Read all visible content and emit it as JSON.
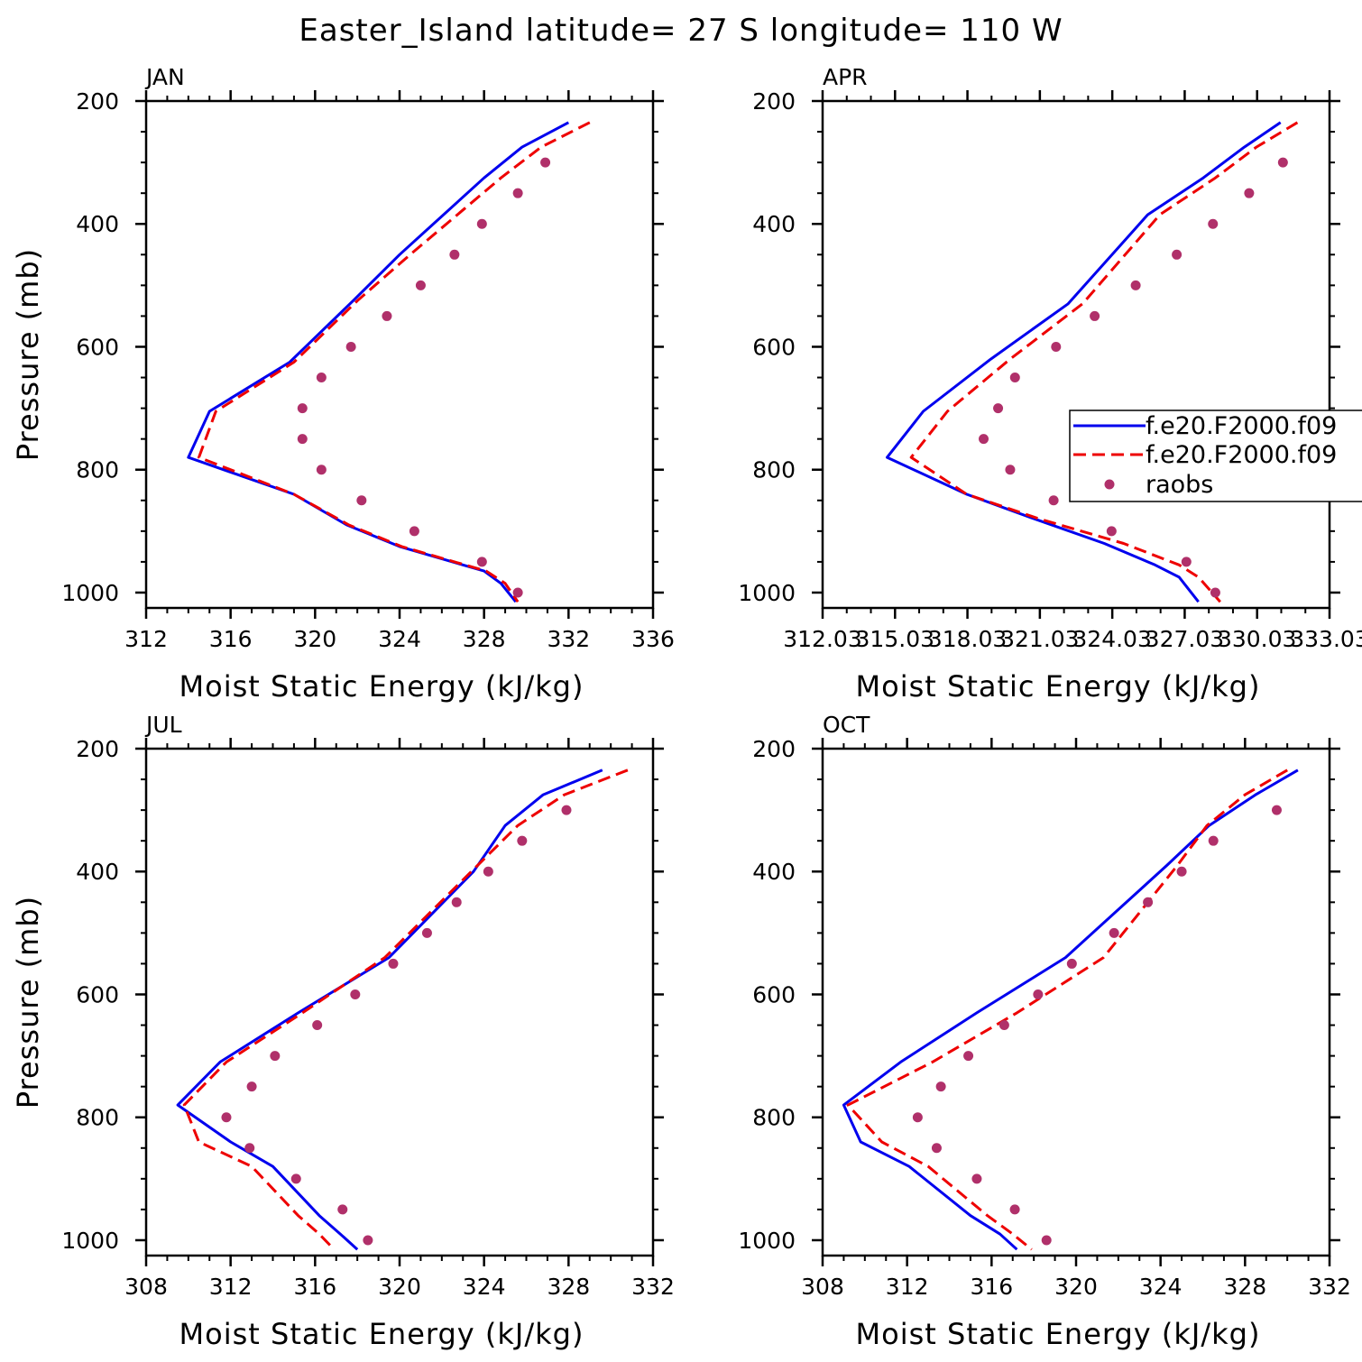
{
  "title": "Easter_Island   latitude= 27 S longitude= 110 W",
  "colors": {
    "series1": "#0000ee",
    "series2": "#ee0000",
    "raobs": "#b0306a"
  },
  "legend": {
    "placement": "right edge of APR panel",
    "entries": [
      {
        "label": "f.e20.F2000.f09",
        "style": "solid-line"
      },
      {
        "label": "f.e20.F2000.f09",
        "style": "dashed-line"
      },
      {
        "label": "raobs",
        "style": "dot"
      }
    ]
  },
  "chart_data": [
    {
      "type": "line",
      "panel": "JAN",
      "xlabel": "Moist Static Energy (kJ/kg)",
      "ylabel": "Pressure (mb)",
      "xlim": [
        312,
        336
      ],
      "xticks": [
        "312",
        "316",
        "320",
        "324",
        "328",
        "332",
        "336"
      ],
      "ylim": [
        200,
        1025
      ],
      "yticks": [
        "200",
        "400",
        "600",
        "800",
        "1000"
      ],
      "series": [
        {
          "name": "f.e20.F2000.f09 (solid)",
          "x": [
            332.0,
            329.8,
            328.0,
            324.0,
            321.8,
            318.8,
            315.0,
            314.0,
            319.0,
            321.5,
            324.0,
            328.0,
            328.8,
            329.5
          ],
          "y": [
            235,
            275,
            325,
            450,
            525,
            625,
            705,
            780,
            840,
            890,
            925,
            965,
            985,
            1015
          ]
        },
        {
          "name": "f.e20.F2000.f09 (dashed)",
          "x": [
            333.0,
            330.7,
            328.8,
            324.5,
            322.0,
            319.0,
            315.3,
            314.5,
            319.0,
            321.6,
            324.1,
            328.1,
            329.0,
            329.6
          ],
          "y": [
            235,
            275,
            325,
            450,
            525,
            625,
            705,
            780,
            840,
            890,
            925,
            965,
            985,
            1015
          ]
        },
        {
          "name": "raobs",
          "x": [
            330.9,
            329.6,
            327.9,
            326.6,
            325.0,
            323.4,
            321.7,
            320.3,
            319.4,
            319.4,
            320.3,
            322.2,
            324.7,
            327.9,
            329.6
          ],
          "y": [
            300,
            350,
            400,
            450,
            500,
            550,
            600,
            650,
            700,
            750,
            800,
            850,
            900,
            950,
            1000
          ]
        }
      ]
    },
    {
      "type": "line",
      "panel": "APR",
      "xlabel": "Moist Static Energy (kJ/kg)",
      "ylabel": "",
      "xlim": [
        312.03,
        333.03
      ],
      "xticks": [
        "312.03",
        "315.03",
        "318.03",
        "321.03",
        "324.03",
        "327.03",
        "330.03",
        "333.03"
      ],
      "ylim": [
        200,
        1025
      ],
      "yticks": [
        "200",
        "400",
        "600",
        "800",
        "1000"
      ],
      "series": [
        {
          "name": "f.e20.F2000.f09 (solid)",
          "x": [
            331.0,
            329.5,
            327.8,
            325.5,
            322.2,
            319.0,
            316.2,
            314.7,
            318.0,
            320.8,
            323.7,
            325.8,
            326.8,
            327.6
          ],
          "y": [
            235,
            275,
            325,
            385,
            530,
            620,
            705,
            780,
            840,
            880,
            920,
            955,
            975,
            1015
          ]
        },
        {
          "name": "f.e20.F2000.f09 (dashed)",
          "x": [
            331.7,
            330.0,
            328.3,
            326.0,
            322.8,
            319.8,
            317.2,
            315.7,
            318.0,
            321.0,
            324.5,
            326.8,
            327.6,
            328.5
          ],
          "y": [
            235,
            275,
            325,
            385,
            530,
            620,
            705,
            780,
            840,
            880,
            920,
            955,
            975,
            1015
          ]
        },
        {
          "name": "raobs",
          "x": [
            331.1,
            329.7,
            328.2,
            326.7,
            325.0,
            323.3,
            321.7,
            320.0,
            319.3,
            318.7,
            319.8,
            321.6,
            324.0,
            327.1,
            328.3
          ],
          "y": [
            300,
            350,
            400,
            450,
            500,
            550,
            600,
            650,
            700,
            750,
            800,
            850,
            900,
            950,
            1000
          ]
        }
      ]
    },
    {
      "type": "line",
      "panel": "JUL",
      "xlabel": "Moist Static Energy (kJ/kg)",
      "ylabel": "Pressure (mb)",
      "xlim": [
        308,
        332
      ],
      "xticks": [
        "308",
        "312",
        "316",
        "320",
        "324",
        "328",
        "332"
      ],
      "ylim": [
        200,
        1025
      ],
      "yticks": [
        "200",
        "400",
        "600",
        "800",
        "1000"
      ],
      "series": [
        {
          "name": "f.e20.F2000.f09 (solid)",
          "x": [
            329.6,
            326.8,
            325.0,
            323.5,
            319.5,
            315.2,
            311.5,
            309.5,
            312.0,
            314.0,
            316.2,
            317.2,
            318.0
          ],
          "y": [
            235,
            275,
            325,
            400,
            540,
            630,
            710,
            780,
            840,
            880,
            960,
            990,
            1015
          ]
        },
        {
          "name": "f.e20.F2000.f09 (dashed)",
          "x": [
            330.8,
            327.8,
            325.6,
            323.4,
            319.3,
            315.4,
            311.8,
            309.8,
            310.5,
            313.0,
            315.2,
            316.2,
            316.9
          ],
          "y": [
            235,
            275,
            325,
            400,
            540,
            630,
            710,
            780,
            840,
            880,
            960,
            990,
            1015
          ]
        },
        {
          "name": "raobs",
          "x": [
            327.9,
            325.8,
            324.2,
            322.7,
            321.3,
            319.7,
            317.9,
            316.1,
            314.1,
            313.0,
            311.8,
            312.9,
            315.1,
            317.3,
            318.5
          ],
          "y": [
            300,
            350,
            400,
            450,
            500,
            550,
            600,
            650,
            700,
            750,
            800,
            850,
            900,
            950,
            1000
          ]
        }
      ]
    },
    {
      "type": "line",
      "panel": "OCT",
      "xlabel": "Moist Static Energy (kJ/kg)",
      "ylabel": "",
      "xlim": [
        308,
        332
      ],
      "xticks": [
        "308",
        "312",
        "316",
        "320",
        "324",
        "328",
        "332"
      ],
      "ylim": [
        200,
        1025
      ],
      "yticks": [
        "200",
        "400",
        "600",
        "800",
        "1000"
      ],
      "series": [
        {
          "name": "f.e20.F2000.f09 (solid)",
          "x": [
            330.5,
            328.5,
            326.3,
            324.3,
            319.5,
            315.3,
            311.7,
            309.0,
            309.8,
            312.1,
            315.0,
            316.4,
            317.2
          ],
          "y": [
            235,
            275,
            325,
            390,
            540,
            630,
            710,
            780,
            840,
            880,
            960,
            990,
            1015
          ]
        },
        {
          "name": "f.e20.F2000.f09 (dashed)",
          "x": [
            330.0,
            328.0,
            326.2,
            324.8,
            321.3,
            317.2,
            313.2,
            309.2,
            310.8,
            313.0,
            315.8,
            317.0,
            317.9
          ],
          "y": [
            235,
            275,
            325,
            390,
            540,
            630,
            710,
            780,
            840,
            880,
            960,
            990,
            1015
          ]
        },
        {
          "name": "raobs",
          "x": [
            329.5,
            326.5,
            325.0,
            323.4,
            321.8,
            319.8,
            318.2,
            316.6,
            314.9,
            313.6,
            312.5,
            313.4,
            315.3,
            317.1,
            318.6
          ],
          "y": [
            300,
            350,
            400,
            450,
            500,
            550,
            600,
            650,
            700,
            750,
            800,
            850,
            900,
            950,
            1000
          ]
        }
      ]
    }
  ]
}
